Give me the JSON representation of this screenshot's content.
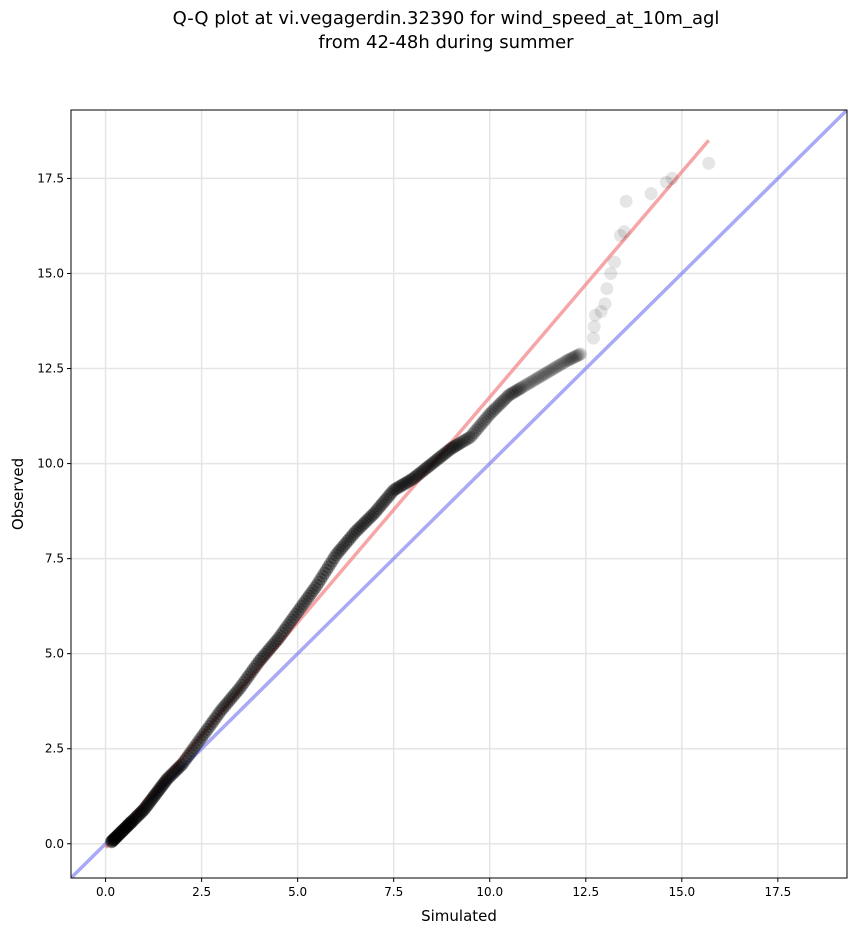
{
  "chart_data": {
    "type": "scatter",
    "title": "Q-Q plot at vi.vegagerdin.32390 for wind_speed_at_10m_agl",
    "subtitle": "from 42-48h during summer",
    "xlabel": "Simulated",
    "ylabel": "Observed",
    "xlim": [
      -0.9,
      19.3
    ],
    "ylim": [
      -0.9,
      19.3
    ],
    "xticks": [
      "0.0",
      "2.5",
      "5.0",
      "7.5",
      "10.0",
      "12.5",
      "15.0",
      "17.5"
    ],
    "yticks": [
      "0.0",
      "2.5",
      "5.0",
      "7.5",
      "10.0",
      "12.5",
      "15.0",
      "17.5"
    ],
    "grid": true,
    "legend": "none",
    "colors": {
      "points": "#000000",
      "fit_line": "#f28080",
      "identity_line": "#7070f0"
    },
    "quantile_curve": {
      "x": [
        0.15,
        0.3,
        0.5,
        0.7,
        1.0,
        1.3,
        1.6,
        2.0,
        2.5,
        3.0,
        3.5,
        4.0,
        4.5,
        5.0,
        5.5,
        6.0,
        6.5,
        7.0,
        7.5,
        8.0,
        8.5,
        9.0,
        9.5,
        10.0,
        10.5,
        11.0,
        11.5,
        12.0,
        12.4
      ],
      "y": [
        0.05,
        0.2,
        0.4,
        0.6,
        0.9,
        1.3,
        1.7,
        2.1,
        2.8,
        3.5,
        4.1,
        4.8,
        5.4,
        6.1,
        6.8,
        7.6,
        8.2,
        8.7,
        9.3,
        9.6,
        10.0,
        10.4,
        10.7,
        11.3,
        11.8,
        12.1,
        12.4,
        12.7,
        12.9
      ]
    },
    "sparse_points": {
      "x": [
        12.7,
        12.72,
        12.75,
        12.9,
        13.0,
        13.05,
        13.15,
        13.25,
        13.4,
        13.5,
        13.55,
        14.2,
        14.6,
        14.75,
        15.7
      ],
      "y": [
        13.3,
        13.6,
        13.9,
        14.0,
        14.2,
        14.6,
        15.0,
        15.3,
        16.0,
        16.1,
        16.9,
        17.1,
        17.4,
        17.5,
        17.9
      ]
    },
    "fit_line": {
      "x": [
        0.0,
        15.7
      ],
      "y": [
        -0.1,
        18.5
      ]
    },
    "identity_line": {
      "x": [
        -0.9,
        19.3
      ],
      "y": [
        -0.9,
        19.3
      ]
    }
  }
}
